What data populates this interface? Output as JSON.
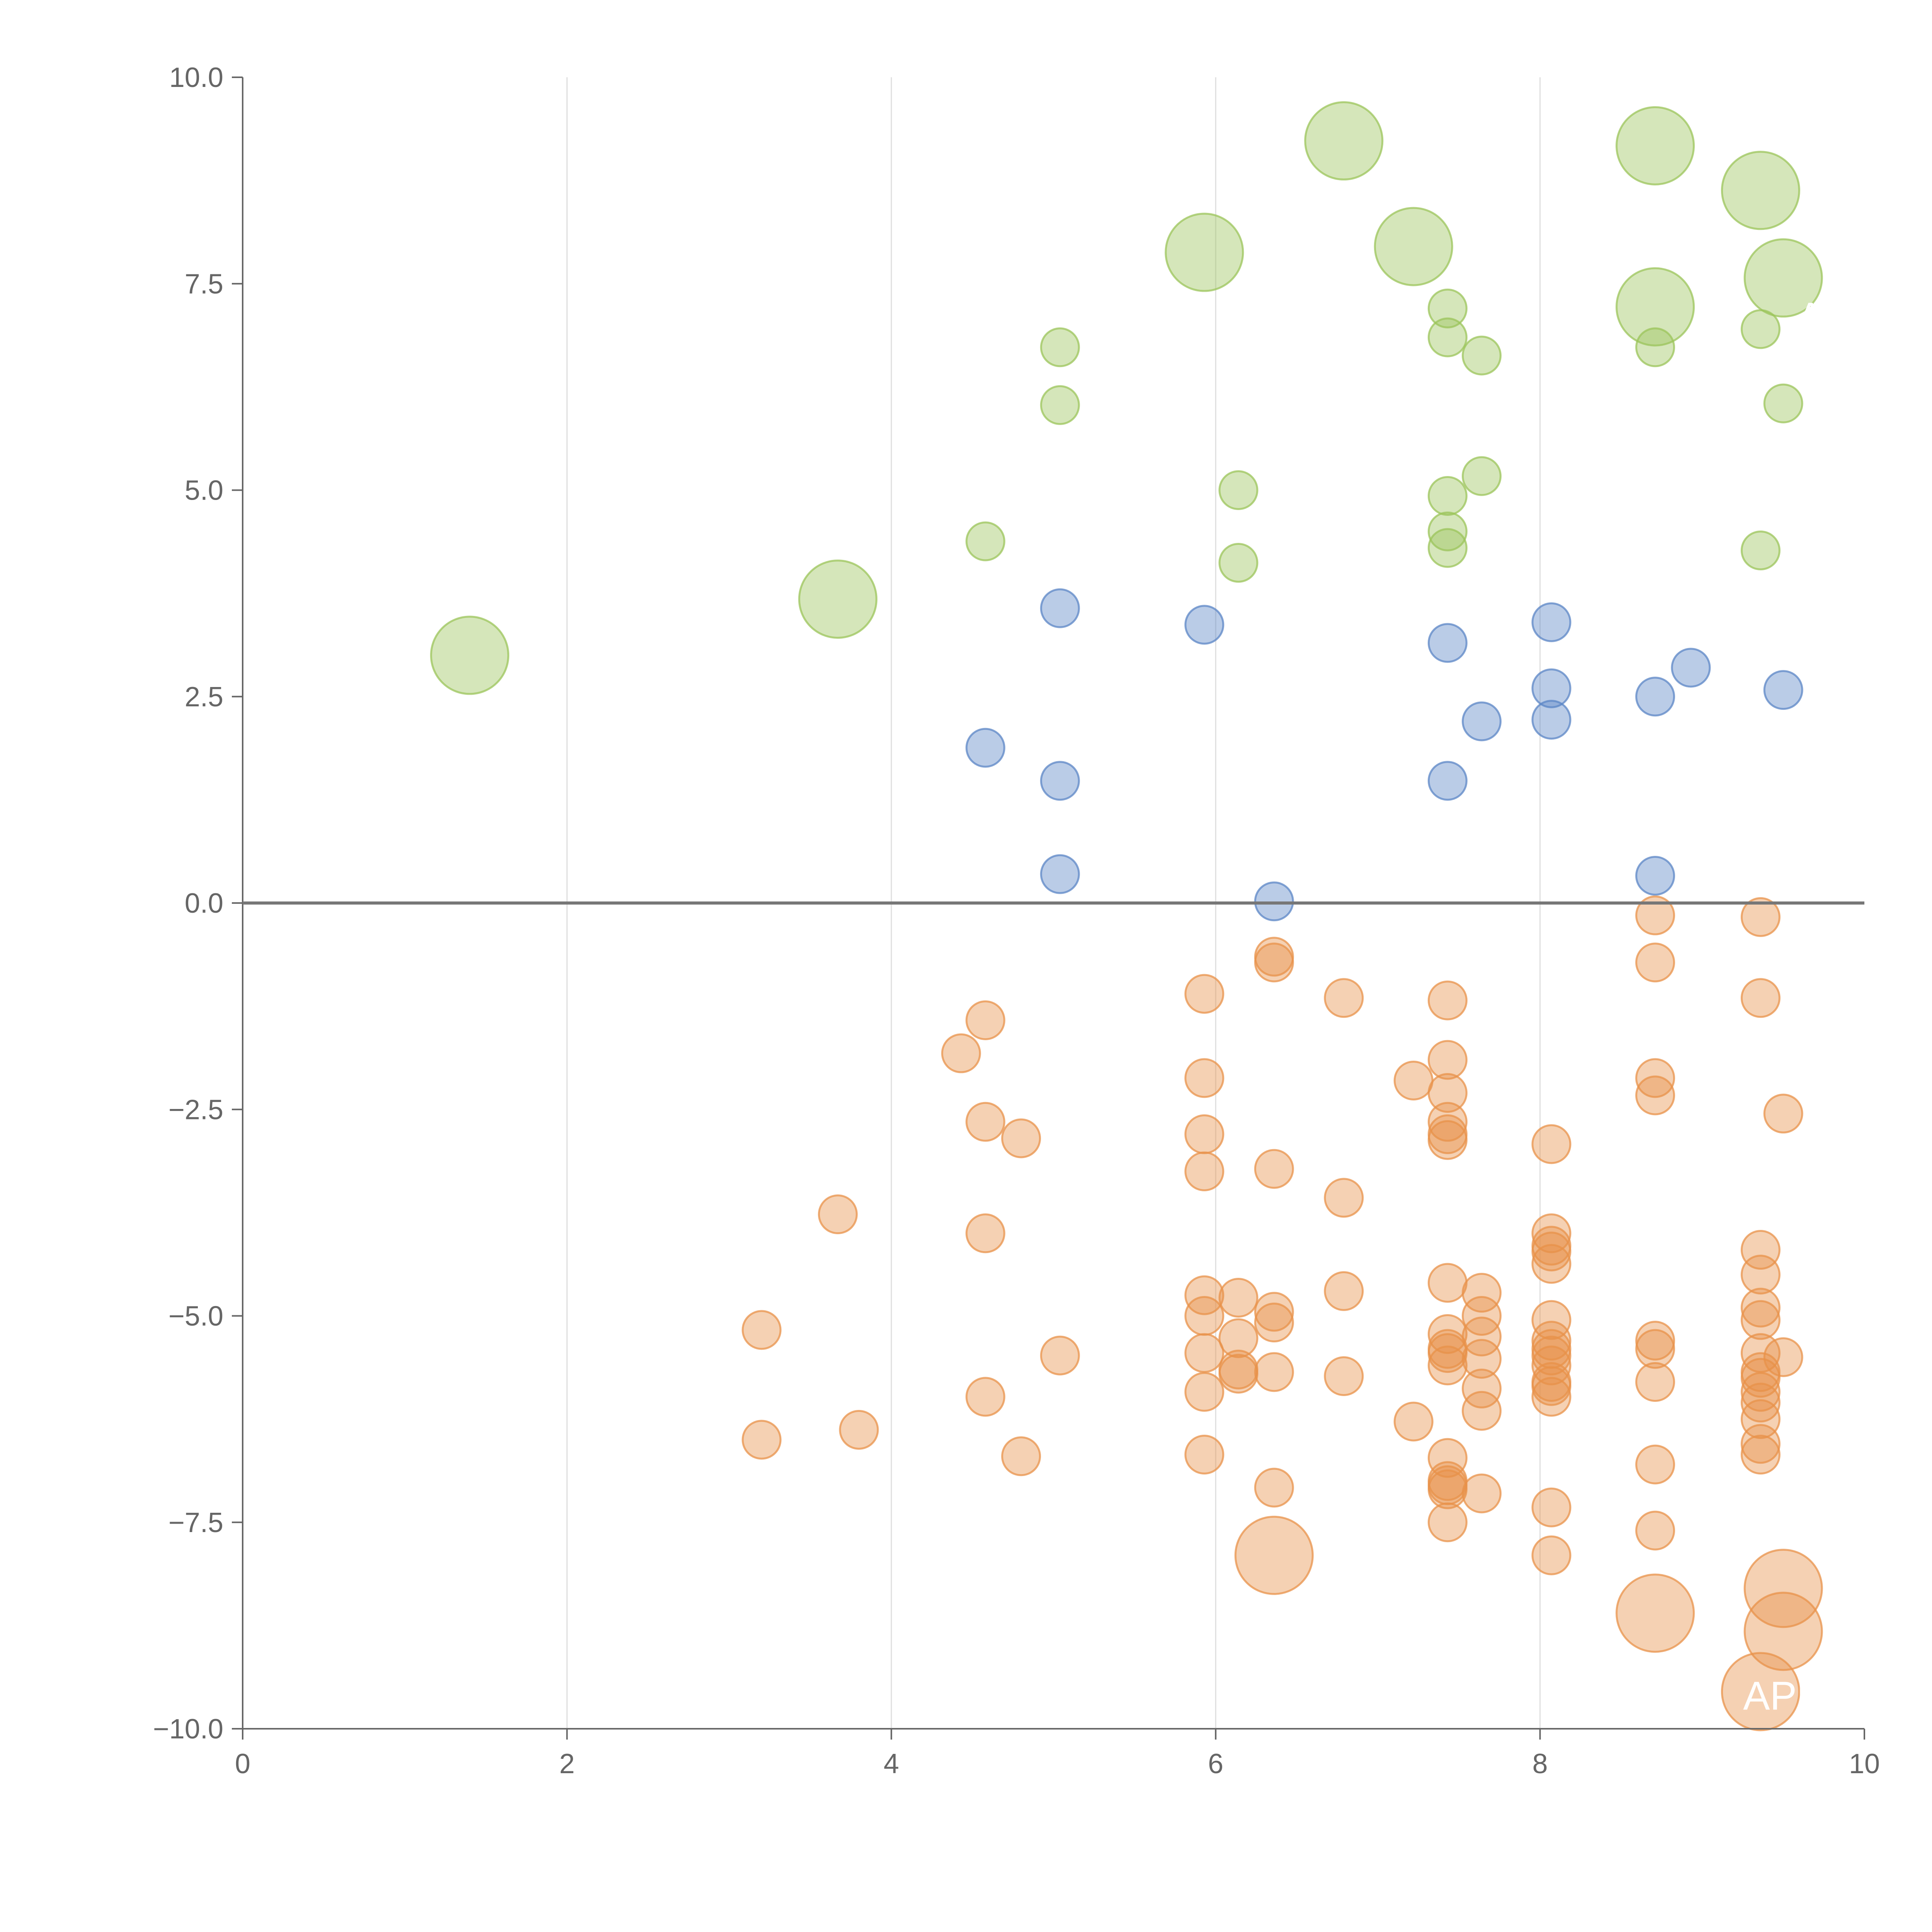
{
  "chart_data": {
    "type": "scatter",
    "title": "",
    "xlabel": "",
    "ylabel": "",
    "xlim": [
      0,
      10
    ],
    "ylim": [
      -10,
      10
    ],
    "grid": "vertical",
    "x_ticks": [
      "0",
      "2",
      "4",
      "6",
      "8",
      "10"
    ],
    "y_ticks": [
      "−10.0",
      "−7.5",
      "−5.0",
      "−2.5",
      "0.0",
      "2.5",
      "5.0",
      "7.5",
      "10.0"
    ],
    "colors": {
      "green": "#9bc45a",
      "blue": "#5b86c6",
      "orange": "#e8924a",
      "zero_line": "#777777",
      "grid": "#dedede",
      "axis": "#666666"
    },
    "series": [
      {
        "name": "green-large",
        "color": "#9bc45a",
        "size": "large",
        "points": [
          [
            1.4,
            3.0
          ],
          [
            3.67,
            3.68
          ],
          [
            5.93,
            7.88
          ],
          [
            6.79,
            9.23
          ],
          [
            7.22,
            7.95
          ],
          [
            8.71,
            9.17
          ],
          [
            8.71,
            7.22
          ],
          [
            9.36,
            8.63
          ],
          [
            9.5,
            7.57
          ]
        ]
      },
      {
        "name": "green-small",
        "color": "#9bc45a",
        "size": "small",
        "points": [
          [
            4.58,
            4.38
          ],
          [
            5.04,
            6.73
          ],
          [
            5.04,
            6.03
          ],
          [
            6.14,
            5.0
          ],
          [
            6.14,
            4.12
          ],
          [
            7.43,
            7.2
          ],
          [
            7.43,
            6.85
          ],
          [
            7.43,
            4.93
          ],
          [
            7.43,
            4.5
          ],
          [
            7.43,
            4.3
          ],
          [
            7.64,
            6.63
          ],
          [
            7.64,
            5.17
          ],
          [
            8.71,
            6.73
          ],
          [
            9.36,
            6.95
          ],
          [
            9.36,
            4.27
          ],
          [
            9.5,
            6.05
          ]
        ]
      },
      {
        "name": "blue",
        "color": "#5b86c6",
        "size": "small",
        "points": [
          [
            4.58,
            1.88
          ],
          [
            5.04,
            3.57
          ],
          [
            5.04,
            1.48
          ],
          [
            5.04,
            0.35
          ],
          [
            5.93,
            3.37
          ],
          [
            6.36,
            0.02
          ],
          [
            7.43,
            3.15
          ],
          [
            7.43,
            1.48
          ],
          [
            7.64,
            2.2
          ],
          [
            8.07,
            3.4
          ],
          [
            8.07,
            2.6
          ],
          [
            8.07,
            2.22
          ],
          [
            8.71,
            2.5
          ],
          [
            8.71,
            0.33
          ],
          [
            8.93,
            2.85
          ],
          [
            9.5,
            2.58
          ]
        ]
      },
      {
        "name": "orange-small",
        "color": "#e8924a",
        "size": "small",
        "points": [
          [
            3.2,
            -5.17
          ],
          [
            3.2,
            -6.5
          ],
          [
            3.67,
            -3.77
          ],
          [
            3.8,
            -6.38
          ],
          [
            4.43,
            -1.82
          ],
          [
            4.58,
            -1.42
          ],
          [
            4.58,
            -2.65
          ],
          [
            4.58,
            -4.0
          ],
          [
            4.58,
            -5.98
          ],
          [
            4.8,
            -2.85
          ],
          [
            4.8,
            -6.7
          ],
          [
            5.04,
            -5.48
          ],
          [
            5.93,
            -1.1
          ],
          [
            5.93,
            -2.12
          ],
          [
            5.93,
            -2.8
          ],
          [
            5.93,
            -3.25
          ],
          [
            5.93,
            -4.75
          ],
          [
            5.93,
            -5.0
          ],
          [
            5.93,
            -5.45
          ],
          [
            5.93,
            -5.92
          ],
          [
            5.93,
            -6.68
          ],
          [
            6.14,
            -4.78
          ],
          [
            6.14,
            -5.27
          ],
          [
            6.14,
            -5.65
          ],
          [
            6.14,
            -5.7
          ],
          [
            6.36,
            -0.65
          ],
          [
            6.36,
            -0.72
          ],
          [
            6.36,
            -3.22
          ],
          [
            6.36,
            -4.95
          ],
          [
            6.36,
            -5.08
          ],
          [
            6.36,
            -5.68
          ],
          [
            6.36,
            -7.08
          ],
          [
            6.79,
            -1.15
          ],
          [
            6.79,
            -3.57
          ],
          [
            6.79,
            -4.7
          ],
          [
            6.79,
            -5.73
          ],
          [
            7.22,
            -2.15
          ],
          [
            7.22,
            -6.28
          ],
          [
            7.43,
            -1.18
          ],
          [
            7.43,
            -1.9
          ],
          [
            7.43,
            -2.3
          ],
          [
            7.43,
            -2.65
          ],
          [
            7.43,
            -2.8
          ],
          [
            7.43,
            -2.87
          ],
          [
            7.43,
            -4.6
          ],
          [
            7.43,
            -5.22
          ],
          [
            7.43,
            -5.4
          ],
          [
            7.43,
            -5.45
          ],
          [
            7.43,
            -5.6
          ],
          [
            7.43,
            -6.72
          ],
          [
            7.43,
            -7.0
          ],
          [
            7.43,
            -7.05
          ],
          [
            7.43,
            -7.1
          ],
          [
            7.43,
            -7.5
          ],
          [
            7.64,
            -4.72
          ],
          [
            7.64,
            -5.0
          ],
          [
            7.64,
            -5.25
          ],
          [
            7.64,
            -5.52
          ],
          [
            7.64,
            -5.88
          ],
          [
            7.64,
            -6.15
          ],
          [
            7.64,
            -7.15
          ],
          [
            8.07,
            -2.92
          ],
          [
            8.07,
            -4.0
          ],
          [
            8.07,
            -4.15
          ],
          [
            8.07,
            -4.22
          ],
          [
            8.07,
            -4.37
          ],
          [
            8.07,
            -5.05
          ],
          [
            8.07,
            -5.3
          ],
          [
            8.07,
            -5.4
          ],
          [
            8.07,
            -5.48
          ],
          [
            8.07,
            -5.6
          ],
          [
            8.07,
            -5.8
          ],
          [
            8.07,
            -5.85
          ],
          [
            8.07,
            -5.98
          ],
          [
            8.07,
            -7.32
          ],
          [
            8.07,
            -7.9
          ],
          [
            8.71,
            -0.15
          ],
          [
            8.71,
            -0.72
          ],
          [
            8.71,
            -2.12
          ],
          [
            8.71,
            -2.33
          ],
          [
            8.71,
            -5.3
          ],
          [
            8.71,
            -5.4
          ],
          [
            8.71,
            -5.8
          ],
          [
            8.71,
            -6.8
          ],
          [
            8.71,
            -7.6
          ],
          [
            9.36,
            -0.17
          ],
          [
            9.36,
            -1.15
          ],
          [
            9.36,
            -4.2
          ],
          [
            9.36,
            -4.5
          ],
          [
            9.36,
            -4.9
          ],
          [
            9.36,
            -5.05
          ],
          [
            9.36,
            -5.45
          ],
          [
            9.36,
            -5.68
          ],
          [
            9.36,
            -5.75
          ],
          [
            9.36,
            -5.92
          ],
          [
            9.36,
            -6.05
          ],
          [
            9.36,
            -6.25
          ],
          [
            9.36,
            -6.55
          ],
          [
            9.36,
            -6.68
          ],
          [
            9.5,
            -2.55
          ],
          [
            9.5,
            -5.5
          ]
        ]
      },
      {
        "name": "orange-large",
        "color": "#e8924a",
        "size": "large",
        "points": [
          [
            6.36,
            -7.9
          ],
          [
            8.71,
            -8.6
          ],
          [
            9.5,
            -8.3
          ],
          [
            9.5,
            -8.82
          ],
          [
            9.36,
            -9.55
          ]
        ]
      }
    ],
    "annotations": [
      {
        "text": "AP",
        "x": 9.75,
        "y": 7.1
      },
      {
        "text": "APP",
        "x": 9.5,
        "y": -9.6
      }
    ]
  }
}
